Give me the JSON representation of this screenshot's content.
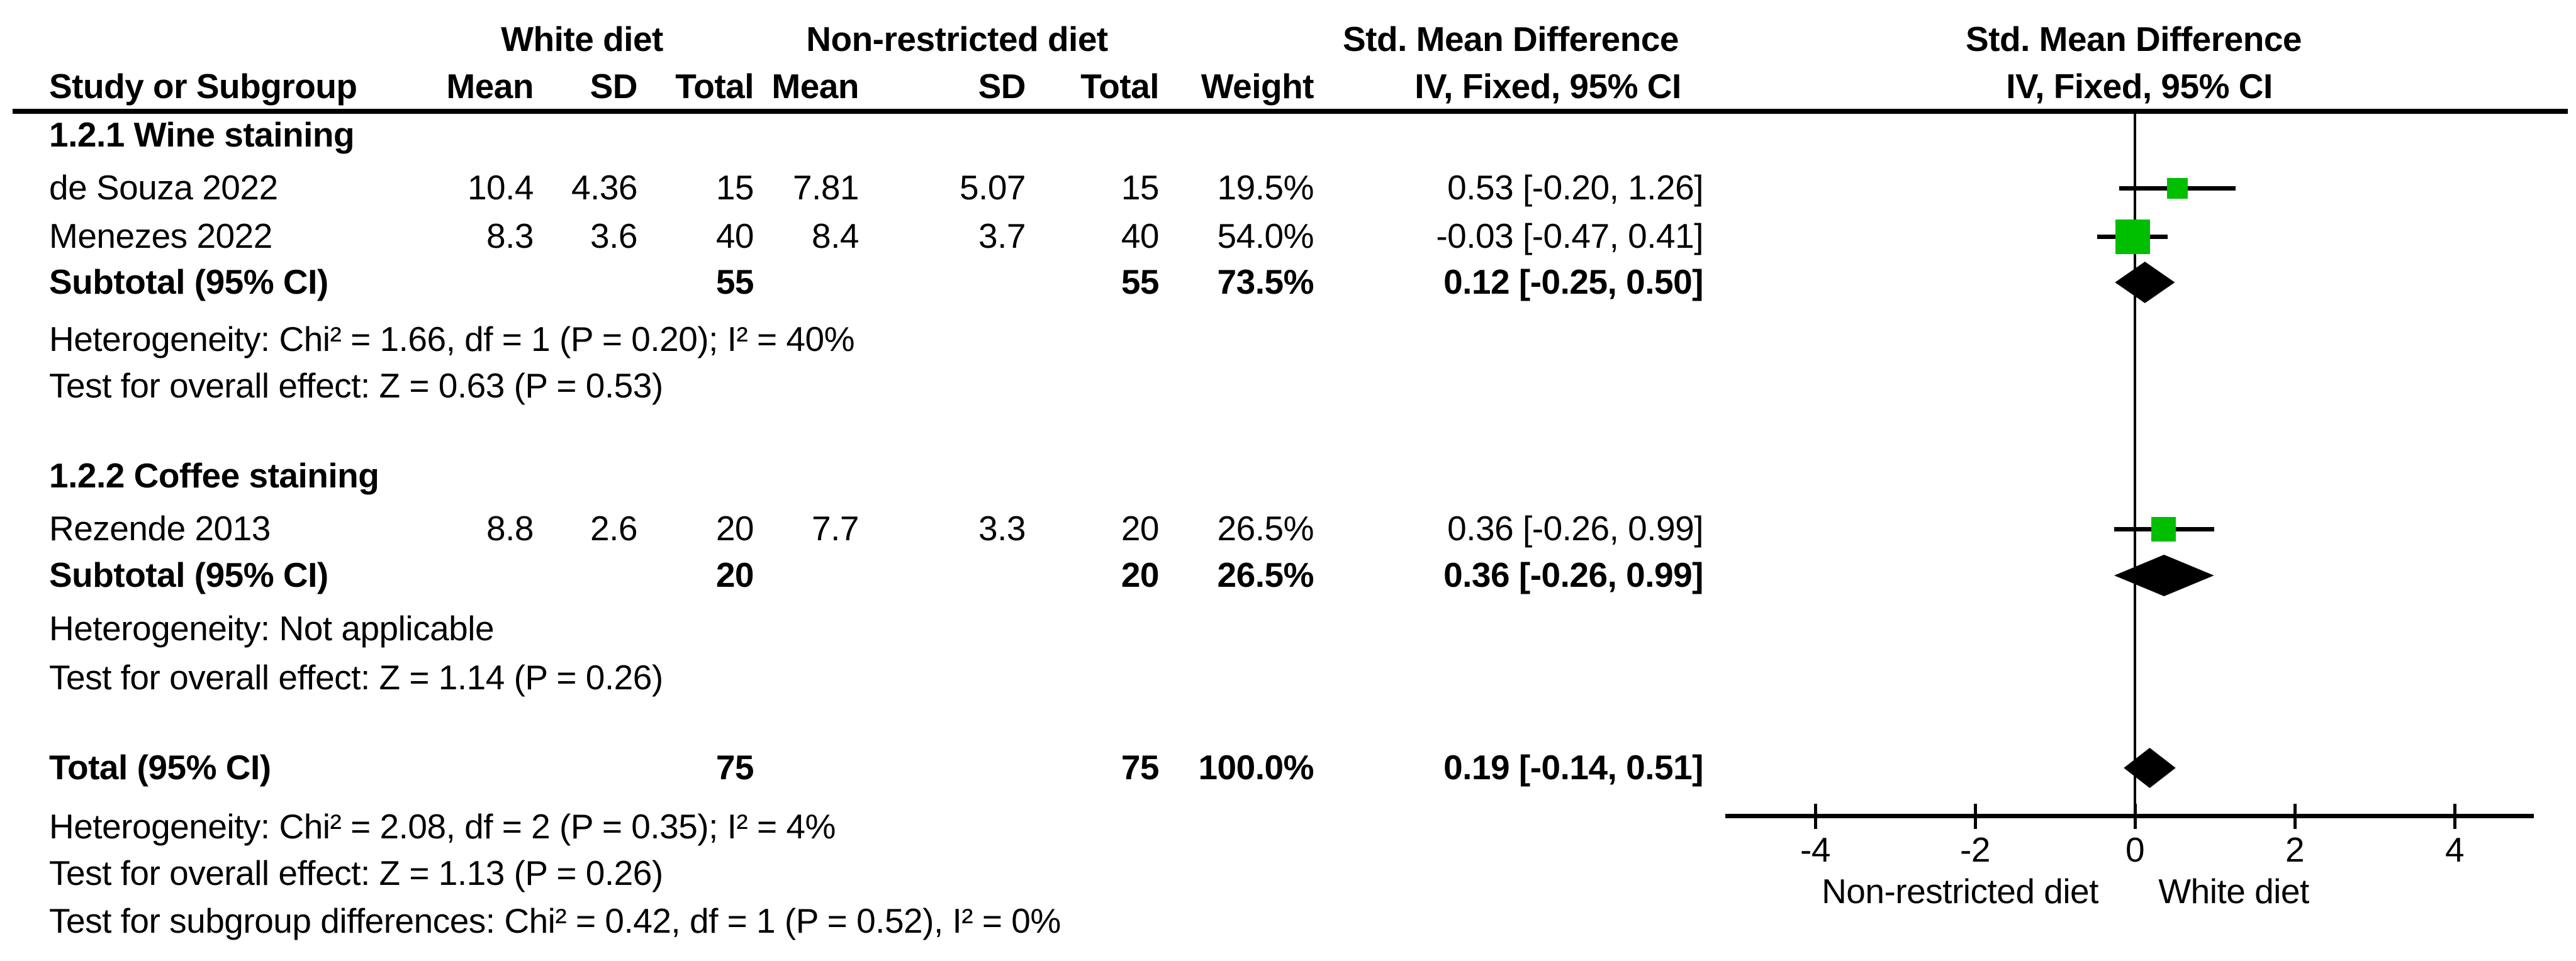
{
  "header": {
    "study": "Study or Subgroup",
    "group1": "White diet",
    "group2": "Non-restricted diet",
    "mean": "Mean",
    "sd": "SD",
    "total": "Total",
    "weight": "Weight",
    "effect": "Std. Mean Difference",
    "method": "IV, Fixed, 95% CI"
  },
  "colors": {
    "marker_green": "#00BE00",
    "diamond_black": "#000000",
    "line_black": "#000000",
    "text": "#000000"
  },
  "chart_data": {
    "type": "scatter",
    "chart_kind": "forest-plot",
    "title": "",
    "effect_label": "Std. Mean Difference",
    "method_label": "IV, Fixed, 95% CI",
    "x_ticks": [
      -4,
      -2,
      0,
      2,
      4
    ],
    "x_range": [
      -5.1,
      5.0
    ],
    "favours_left": "Non-restricted diet",
    "favours_right": "White diet",
    "groups": [
      {
        "label": "1.2.1 Wine staining",
        "studies": [
          {
            "name": "de Souza 2022",
            "mean1": "10.4",
            "sd1": "4.36",
            "total1": "15",
            "mean2": "7.81",
            "sd2": "5.07",
            "total2": "15",
            "weight": "19.5%",
            "weight_value": 19.5,
            "ci_label": "0.53 [-0.20, 1.26]",
            "smd": 0.53,
            "ci_low": -0.2,
            "ci_high": 1.26
          },
          {
            "name": "Menezes 2022",
            "mean1": "8.3",
            "sd1": "3.6",
            "total1": "40",
            "mean2": "8.4",
            "sd2": "3.7",
            "total2": "40",
            "weight": "54.0%",
            "weight_value": 54.0,
            "ci_label": "-0.03 [-0.47, 0.41]",
            "smd": -0.03,
            "ci_low": -0.47,
            "ci_high": 0.41
          }
        ],
        "subtotal": {
          "label": "Subtotal (95% CI)",
          "total1": "55",
          "total2": "55",
          "weight": "73.5%",
          "ci_label": "0.12 [-0.25, 0.50]",
          "smd": 0.12,
          "ci_low": -0.25,
          "ci_high": 0.5
        },
        "heterogeneity": "Heterogeneity: Chi² = 1.66, df = 1 (P = 0.20); I² = 40%",
        "overall_effect": "Test for overall effect: Z = 0.63 (P = 0.53)"
      },
      {
        "label": "1.2.2 Coffee staining",
        "studies": [
          {
            "name": "Rezende 2013",
            "mean1": "8.8",
            "sd1": "2.6",
            "total1": "20",
            "mean2": "7.7",
            "sd2": "3.3",
            "total2": "20",
            "weight": "26.5%",
            "weight_value": 26.5,
            "ci_label": "0.36 [-0.26, 0.99]",
            "smd": 0.36,
            "ci_low": -0.26,
            "ci_high": 0.99
          }
        ],
        "subtotal": {
          "label": "Subtotal (95% CI)",
          "total1": "20",
          "total2": "20",
          "weight": "26.5%",
          "ci_label": "0.36 [-0.26, 0.99]",
          "smd": 0.36,
          "ci_low": -0.26,
          "ci_high": 0.99
        },
        "heterogeneity": "Heterogeneity: Not applicable",
        "overall_effect": "Test for overall effect: Z = 1.14 (P = 0.26)"
      }
    ],
    "total": {
      "label": "Total (95% CI)",
      "total1": "75",
      "total2": "75",
      "weight": "100.0%",
      "ci_label": "0.19 [-0.14, 0.51]",
      "smd": 0.19,
      "ci_low": -0.14,
      "ci_high": 0.51
    },
    "footnotes": [
      "Heterogeneity: Chi² = 2.08, df = 2 (P = 0.35); I² = 4%",
      "Test for overall effect: Z = 1.13 (P = 0.26)",
      "Test for subgroup differences: Chi² = 0.42, df = 1 (P = 0.52), I² = 0%"
    ]
  }
}
